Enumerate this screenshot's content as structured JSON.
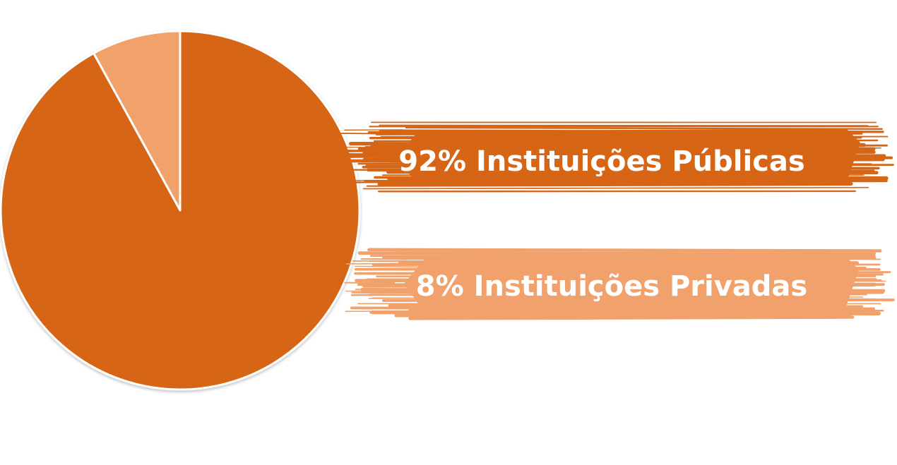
{
  "colors": {
    "primary": "#d66516",
    "secondary": "#f1a16b",
    "background": "#ffffff",
    "slice_border": "#ffffff",
    "label_text": "#ffffff"
  },
  "chart_data": {
    "type": "pie",
    "title": "",
    "slices": [
      {
        "label": "92% Instituições Públicas",
        "value": 92,
        "color": "#d66516"
      },
      {
        "label": "8% Instituições Privadas",
        "value": 8,
        "color": "#f1a16b"
      }
    ],
    "legend_placement": "right",
    "legend_style": "brush-stroke banners"
  }
}
